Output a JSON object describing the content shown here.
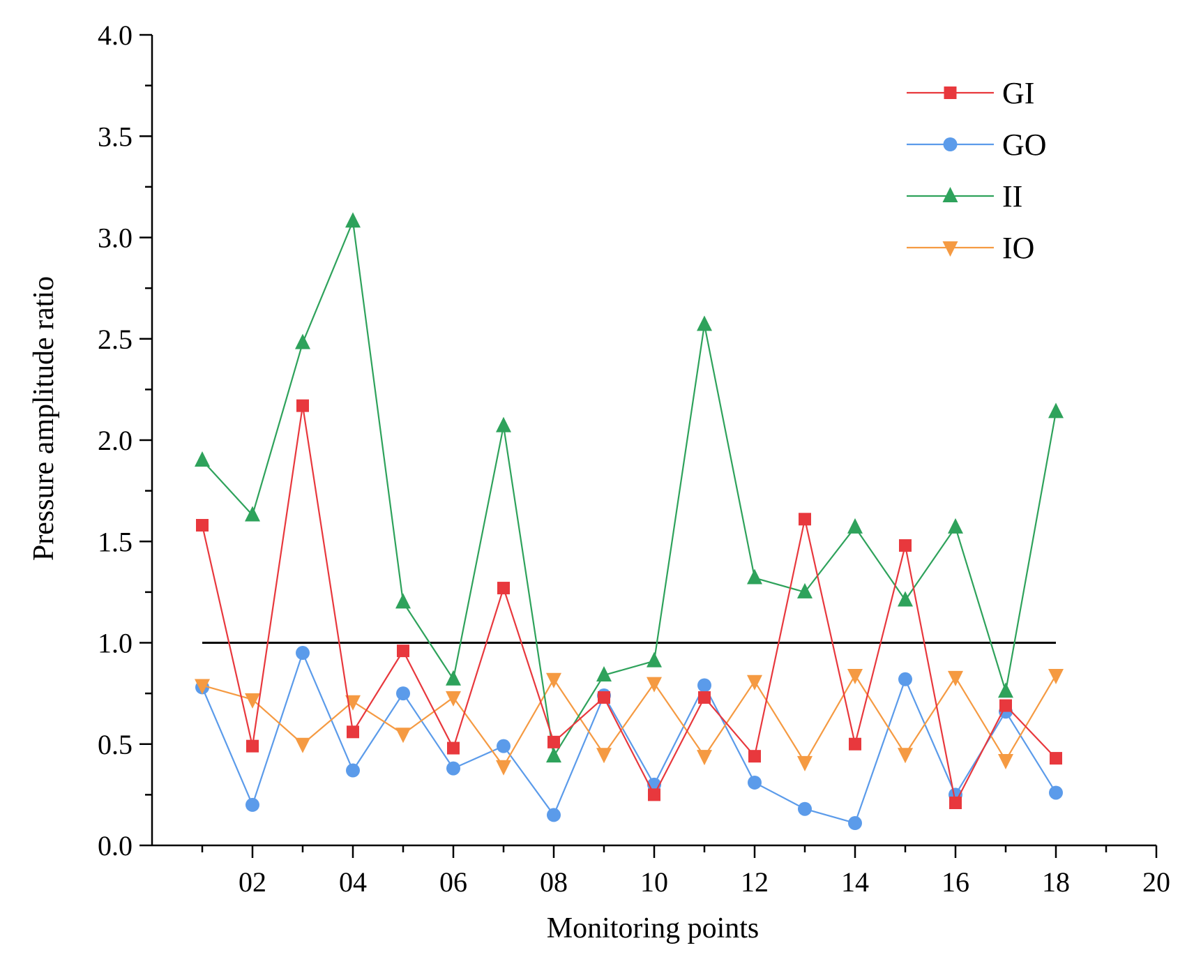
{
  "chart_data": {
    "type": "line",
    "title": "",
    "xlabel": "Monitoring points",
    "ylabel": "Pressure amplitude ratio",
    "xlim": [
      0,
      20
    ],
    "ylim": [
      0.0,
      4.0
    ],
    "x_ticks": [
      2,
      4,
      6,
      8,
      10,
      12,
      14,
      16,
      18,
      20
    ],
    "x_tick_labels": [
      "02",
      "04",
      "06",
      "08",
      "10",
      "12",
      "14",
      "16",
      "18",
      "20"
    ],
    "y_ticks": [
      0.0,
      0.5,
      1.0,
      1.5,
      2.0,
      2.5,
      3.0,
      3.5,
      4.0
    ],
    "y_tick_labels": [
      "0.0",
      "0.5",
      "1.0",
      "1.5",
      "2.0",
      "2.5",
      "3.0",
      "3.5",
      "4.0"
    ],
    "x": [
      1,
      2,
      3,
      4,
      5,
      6,
      7,
      8,
      9,
      10,
      11,
      12,
      13,
      14,
      15,
      16,
      17,
      18
    ],
    "series": [
      {
        "name": "GI",
        "color": "#e8383d",
        "marker": "square",
        "values": [
          1.58,
          0.49,
          2.17,
          0.56,
          0.96,
          0.48,
          1.27,
          0.51,
          0.73,
          0.25,
          0.73,
          0.44,
          1.61,
          0.5,
          1.48,
          0.21,
          0.69,
          0.43
        ]
      },
      {
        "name": "GO",
        "color": "#5b9bea",
        "marker": "circle",
        "values": [
          0.78,
          0.2,
          0.95,
          0.37,
          0.75,
          0.38,
          0.49,
          0.15,
          0.74,
          0.3,
          0.79,
          0.31,
          0.18,
          0.11,
          0.82,
          0.25,
          0.66,
          0.26
        ]
      },
      {
        "name": "II",
        "color": "#2ea25b",
        "marker": "triangle-up",
        "values": [
          1.9,
          1.63,
          2.48,
          3.08,
          1.2,
          0.82,
          2.07,
          0.44,
          0.84,
          0.91,
          2.57,
          1.32,
          1.25,
          1.57,
          1.21,
          1.57,
          0.76,
          2.14
        ]
      },
      {
        "name": "IO",
        "color": "#f59a42",
        "marker": "triangle-down",
        "values": [
          0.79,
          0.72,
          0.5,
          0.71,
          0.55,
          0.73,
          0.39,
          0.82,
          0.45,
          0.8,
          0.44,
          0.81,
          0.41,
          0.84,
          0.45,
          0.83,
          0.42,
          0.84
        ]
      }
    ],
    "reference_line": {
      "y": 1.0,
      "x_from": 1,
      "x_to": 18,
      "color": "#000000"
    },
    "legend": {
      "position": "top-right",
      "entries": [
        "GI",
        "GO",
        "II",
        "IO"
      ]
    },
    "grid": false
  }
}
